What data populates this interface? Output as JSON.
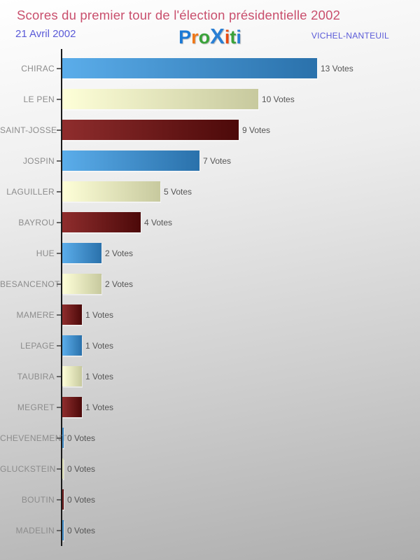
{
  "header": {
    "title": "Scores du premier tour de l'élection présidentielle 2002",
    "date": "21 Avril 2002",
    "location": "VICHEL-NANTEUIL",
    "logo": {
      "name": "proxiti-logo",
      "letters": [
        {
          "ch": "P",
          "color": "#1b79d6",
          "big": false
        },
        {
          "ch": "r",
          "color": "#f07818",
          "big": false
        },
        {
          "ch": "o",
          "color": "#3aa33a",
          "big": false
        },
        {
          "ch": "X",
          "color": "#2a7fd4",
          "big": true
        },
        {
          "ch": "i",
          "color": "#e8490f",
          "big": false
        },
        {
          "ch": "t",
          "color": "#3aa33a",
          "big": false
        },
        {
          "ch": "i",
          "color": "#2a7fd4",
          "big": false
        }
      ]
    }
  },
  "colors": {
    "title": "#c94f6d",
    "subtitle": "#5a5ad8",
    "axis": "#1a1a1a",
    "category_label": "#8c8c8c",
    "value_label": "#555555",
    "background_top": "#ffffff",
    "background_bottom": "#aeaeae",
    "bar_blue": [
      "#5badea",
      "#2a71ab"
    ],
    "bar_cream": [
      "#feffd8",
      "#c7c99e"
    ],
    "bar_darkred": [
      "#8f2d2d",
      "#4c0909"
    ]
  },
  "chart_data": {
    "type": "bar",
    "orientation": "horizontal",
    "title": "Scores du premier tour de l'élection présidentielle 2002",
    "subtitle_left": "21 Avril 2002",
    "subtitle_right": "VICHEL-NANTEUIL",
    "categories": [
      "CHIRAC",
      "LE PEN",
      "SAINT-JOSSE",
      "JOSPIN",
      "LAGUILLER",
      "BAYROU",
      "HUE",
      "BESANCENOT",
      "MAMERE",
      "LEPAGE",
      "TAUBIRA",
      "MEGRET",
      "CHEVENEMENT",
      "GLUCKSTEIN",
      "BOUTIN",
      "MADELIN"
    ],
    "values": [
      13,
      10,
      9,
      7,
      5,
      4,
      2,
      2,
      1,
      1,
      1,
      1,
      0,
      0,
      0,
      0
    ],
    "value_labels": [
      "13 Votes",
      "10 Votes",
      "9 Votes",
      "7 Votes",
      "5 Votes",
      "4 Votes",
      "2 Votes",
      "2 Votes",
      "1 Votes",
      "1 Votes",
      "1 Votes",
      "1 Votes",
      "0 Votes",
      "0 Votes",
      "0 Votes",
      "0 Votes"
    ],
    "value_label_suffix": " Votes",
    "bar_color_cycle": [
      "bar_blue",
      "bar_cream",
      "bar_darkred"
    ],
    "xlim": [
      0,
      13
    ],
    "grid": false,
    "legend": "none"
  }
}
